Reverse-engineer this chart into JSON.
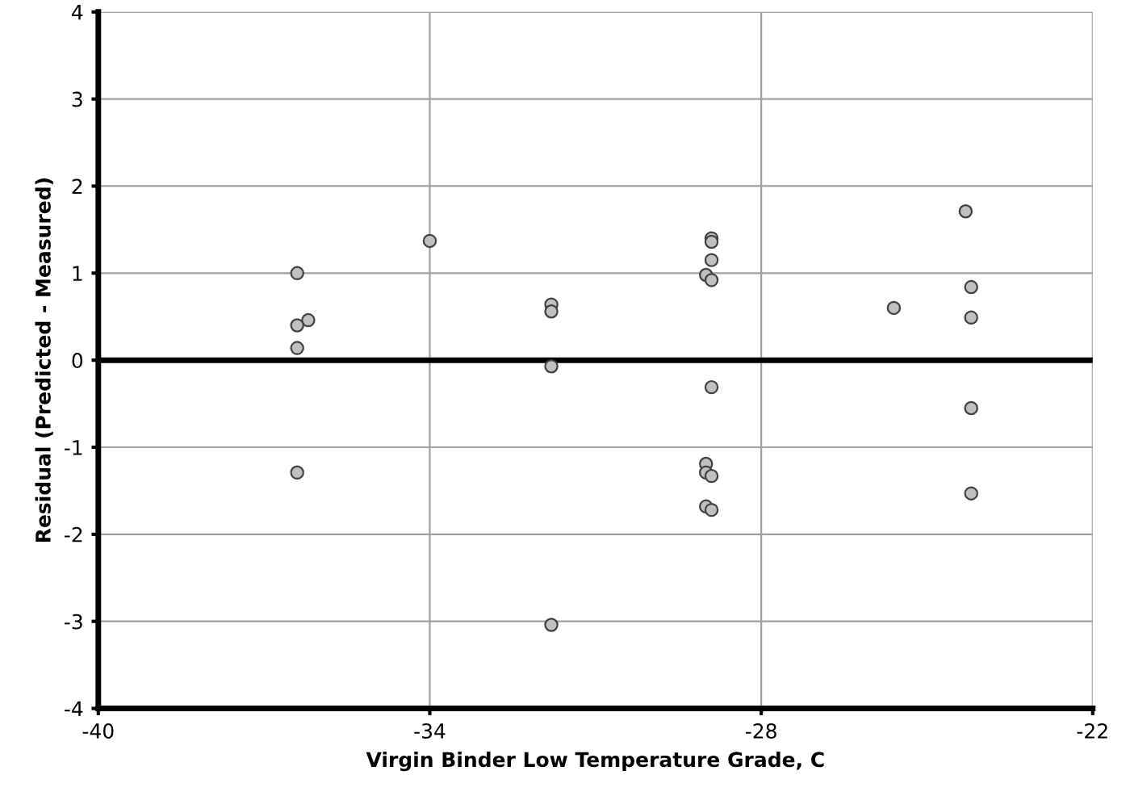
{
  "chart_data": {
    "type": "scatter",
    "xlabel": "Virgin Binder Low Temperature Grade, C",
    "ylabel": "Residual (Predicted - Measured)",
    "series": [
      {
        "color": "#c0c0c0",
        "x": [
          -36.4,
          -36.2,
          -36.4,
          -36.4,
          -36.4,
          -34,
          -31.8,
          -31.8,
          -31.8,
          -31.8,
          -28.9,
          -28.9,
          -28.9,
          -29.0,
          -28.9,
          -28.9,
          -29.0,
          -29.0,
          -28.9,
          -29.0,
          -28.9,
          -25.6,
          -24.3,
          -24.2,
          -24.2,
          -24.2,
          -24.2
        ],
        "values": [
          1.0,
          0.46,
          0.4,
          0.14,
          -1.29,
          1.37,
          0.64,
          0.56,
          -0.07,
          -3.04,
          1.4,
          1.36,
          1.15,
          0.98,
          0.92,
          -0.31,
          -1.19,
          -1.29,
          -1.33,
          -1.68,
          -1.72,
          0.6,
          1.71,
          0.84,
          0.49,
          -0.55,
          -1.53
        ]
      }
    ],
    "xlim": [
      -40,
      -22
    ],
    "xticks": [
      -40,
      -34,
      -28,
      -22
    ],
    "ylim": [
      -4,
      4
    ],
    "yticks": [
      -4,
      -3,
      -2,
      -1,
      0,
      1,
      2,
      3,
      4
    ],
    "grid": true,
    "marker": "circle",
    "ref_lines": [
      {
        "axis": "y",
        "value": 0,
        "color": "#000000"
      }
    ]
  }
}
